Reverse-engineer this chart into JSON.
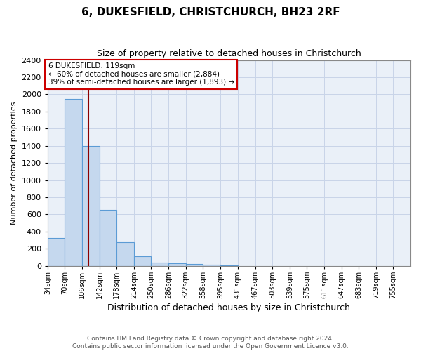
{
  "title": "6, DUKESFIELD, CHRISTCHURCH, BH23 2RF",
  "subtitle": "Size of property relative to detached houses in Christchurch",
  "xlabel": "Distribution of detached houses by size in Christchurch",
  "ylabel": "Number of detached properties",
  "footer_line1": "Contains HM Land Registry data © Crown copyright and database right 2024.",
  "footer_line2": "Contains public sector information licensed under the Open Government Licence v3.0.",
  "bin_edges": [
    34,
    70,
    106,
    142,
    178,
    214,
    250,
    286,
    322,
    358,
    395,
    431,
    467,
    503,
    539,
    575,
    611,
    647,
    683,
    719,
    755
  ],
  "bar_heights": [
    325,
    1950,
    1400,
    650,
    275,
    110,
    40,
    30,
    20,
    10,
    5,
    0,
    0,
    0,
    0,
    0,
    0,
    0,
    0,
    0
  ],
  "bar_color": "#c5d8ee",
  "bar_edge_color": "#5b9bd5",
  "property_size": 119,
  "red_line_color": "#8b0000",
  "annotation_line1": "6 DUKESFIELD: 119sqm",
  "annotation_line2": "← 60% of detached houses are smaller (2,884)",
  "annotation_line3": "39% of semi-detached houses are larger (1,893) →",
  "annotation_box_color": "#cc0000",
  "ylim": [
    0,
    2400
  ],
  "yticks": [
    0,
    200,
    400,
    600,
    800,
    1000,
    1200,
    1400,
    1600,
    1800,
    2000,
    2200,
    2400
  ],
  "grid_color": "#c8d4e8",
  "bg_color": "#eaf0f8"
}
